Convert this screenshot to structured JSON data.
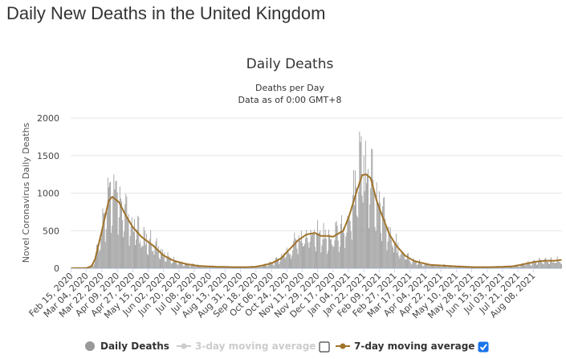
{
  "page": {
    "title": "Daily New Deaths in the United Kingdom"
  },
  "chart_data": {
    "type": "bar",
    "title": "Daily Deaths",
    "subtitle_lines": [
      "Deaths per Day",
      "Data as of 0:00 GMT+8"
    ],
    "xlabel": "",
    "ylabel": "Novel Coronavirus Daily Deaths",
    "ylim": [
      0,
      2000
    ],
    "yticks": [
      0,
      500,
      1000,
      1500,
      2000
    ],
    "grid": true,
    "x_tick_labels": [
      "Feb 15, 2020",
      "Mar 04, 2020",
      "Mar 22, 2020",
      "Apr 09, 2020",
      "Apr 27, 2020",
      "May 15, 2020",
      "Jun 02, 2020",
      "Jun 20, 2020",
      "Jul 08, 2020",
      "Jul 26, 2020",
      "Aug 13, 2020",
      "Aug 31, 2020",
      "Sep 18, 2020",
      "Oct 06, 2020",
      "Oct 24, 2020",
      "Nov 11, 2020",
      "Nov 29, 2020",
      "Dec 17, 2020",
      "Jan 04, 2021",
      "Jan 22, 2021",
      "Feb 09, 2021",
      "Feb 27, 2021",
      "Mar 17, 2021",
      "Apr 04, 2021",
      "Apr 22, 2021",
      "May 10, 2021",
      "May 28, 2021",
      "Jun 15, 2021",
      "Jul 03, 2021",
      "Jul 21, 2021",
      "Aug 08, 2021"
    ],
    "x_tick_period_days": 18,
    "start_date": "Feb 15, 2020",
    "colors": {
      "bars": "#999999",
      "ma7": "#a0732a",
      "ma3": "#cccccc",
      "grid": "#e6e6e6",
      "checkbox": "#1a73e8"
    },
    "series": [
      {
        "name": "Daily Deaths",
        "visible": true
      },
      {
        "name": "3-day moving average",
        "visible": false
      },
      {
        "name": "7-day moving average",
        "visible": true
      }
    ],
    "seven_day_avg_anchors": [
      [
        0,
        0
      ],
      [
        18,
        2
      ],
      [
        24,
        30
      ],
      [
        28,
        120
      ],
      [
        36,
        500
      ],
      [
        44,
        900
      ],
      [
        48,
        950
      ],
      [
        56,
        880
      ],
      [
        64,
        700
      ],
      [
        72,
        550
      ],
      [
        82,
        420
      ],
      [
        96,
        300
      ],
      [
        108,
        170
      ],
      [
        120,
        100
      ],
      [
        135,
        55
      ],
      [
        150,
        30
      ],
      [
        170,
        20
      ],
      [
        190,
        15
      ],
      [
        205,
        15
      ],
      [
        215,
        20
      ],
      [
        225,
        40
      ],
      [
        235,
        70
      ],
      [
        245,
        130
      ],
      [
        255,
        250
      ],
      [
        265,
        370
      ],
      [
        275,
        450
      ],
      [
        285,
        470
      ],
      [
        292,
        430
      ],
      [
        300,
        430
      ],
      [
        306,
        420
      ],
      [
        312,
        460
      ],
      [
        318,
        500
      ],
      [
        325,
        700
      ],
      [
        333,
        1000
      ],
      [
        340,
        1240
      ],
      [
        345,
        1250
      ],
      [
        350,
        1200
      ],
      [
        357,
        900
      ],
      [
        365,
        650
      ],
      [
        372,
        450
      ],
      [
        380,
        300
      ],
      [
        390,
        170
      ],
      [
        400,
        100
      ],
      [
        410,
        70
      ],
      [
        420,
        45
      ],
      [
        435,
        35
      ],
      [
        450,
        25
      ],
      [
        470,
        15
      ],
      [
        490,
        15
      ],
      [
        505,
        20
      ],
      [
        515,
        25
      ],
      [
        525,
        45
      ],
      [
        535,
        70
      ],
      [
        545,
        90
      ],
      [
        555,
        100
      ],
      [
        565,
        100
      ],
      [
        572,
        110
      ]
    ],
    "daily_bar_peaks": [
      [
        46,
        1150
      ],
      [
        51,
        1050
      ],
      [
        53,
        1170
      ],
      [
        58,
        930
      ],
      [
        54,
        1010
      ],
      [
        332,
        1300
      ],
      [
        337,
        1820
      ],
      [
        339,
        1760
      ],
      [
        342,
        1500
      ],
      [
        344,
        1700
      ],
      [
        346,
        1250
      ]
    ],
    "legend": {
      "daily": "Daily Deaths",
      "ma3": "3-day moving average",
      "ma7": "7-day moving average",
      "ma3_checked": false,
      "ma7_checked": true
    }
  }
}
